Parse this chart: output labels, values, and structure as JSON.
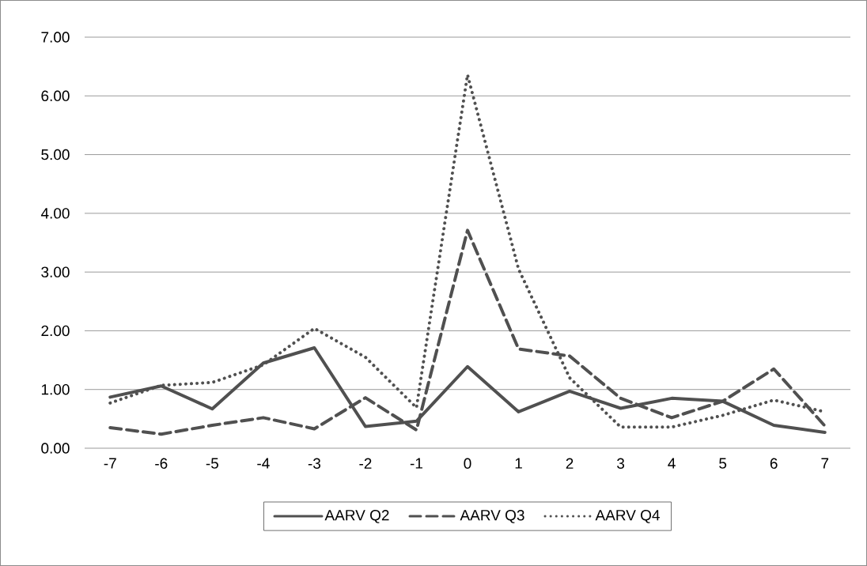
{
  "chart_data": {
    "type": "line",
    "categories": [
      "-7",
      "-6",
      "-5",
      "-4",
      "-3",
      "-2",
      "-1",
      "0",
      "1",
      "2",
      "3",
      "4",
      "5",
      "6",
      "7"
    ],
    "series": [
      {
        "name": "AARV Q2",
        "color": "#505050",
        "line_style": "solid",
        "values": [
          0.87,
          1.06,
          0.67,
          1.45,
          1.71,
          0.37,
          0.46,
          1.39,
          0.62,
          0.97,
          0.68,
          0.85,
          0.8,
          0.39,
          0.27
        ]
      },
      {
        "name": "AARV Q3",
        "color": "#505050",
        "line_style": "dashed",
        "values": [
          0.35,
          0.24,
          0.39,
          0.52,
          0.33,
          0.86,
          0.31,
          3.71,
          1.69,
          1.57,
          0.85,
          0.52,
          0.8,
          1.35,
          0.38
        ]
      },
      {
        "name": "AARV Q4",
        "color": "#505050",
        "line_style": "dotted",
        "values": [
          0.77,
          1.07,
          1.12,
          1.42,
          2.04,
          1.55,
          0.69,
          6.36,
          3.05,
          1.2,
          0.36,
          0.36,
          0.56,
          0.82,
          0.62
        ]
      }
    ],
    "ylim": [
      0,
      7
    ],
    "yticks": [
      {
        "value": 0,
        "label": "0.00"
      },
      {
        "value": 1,
        "label": "1.00"
      },
      {
        "value": 2,
        "label": "2.00"
      },
      {
        "value": 3,
        "label": "3.00"
      },
      {
        "value": 4,
        "label": "4.00"
      },
      {
        "value": 5,
        "label": "5.00"
      },
      {
        "value": 6,
        "label": "6.00"
      },
      {
        "value": 7,
        "label": "7.00"
      }
    ],
    "grid": "y",
    "legend": "bottom",
    "marker": "none"
  }
}
